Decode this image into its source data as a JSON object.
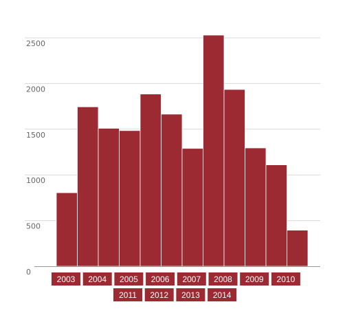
{
  "chart_data": {
    "type": "bar",
    "title": "",
    "xlabel": "",
    "ylabel": "",
    "ylim": [
      0,
      2500
    ],
    "yticks": [
      0,
      500,
      1000,
      1500,
      2000,
      2500
    ],
    "grid": true,
    "bar_color": "#9b2a32",
    "categories": [
      "2003",
      "2004",
      "2005",
      "2006",
      "2007",
      "2008",
      "2009",
      "2010",
      "2011",
      "2012",
      "2013",
      "2014"
    ],
    "values": [
      805,
      1745,
      1510,
      1485,
      1885,
      1665,
      1290,
      2530,
      1935,
      1295,
      1110,
      395
    ],
    "year_labels": [
      "2003",
      "2004",
      "2005",
      "2006",
      "2007",
      "2008",
      "2009",
      "2010",
      "2011",
      "2012",
      "2013",
      "2014"
    ]
  }
}
